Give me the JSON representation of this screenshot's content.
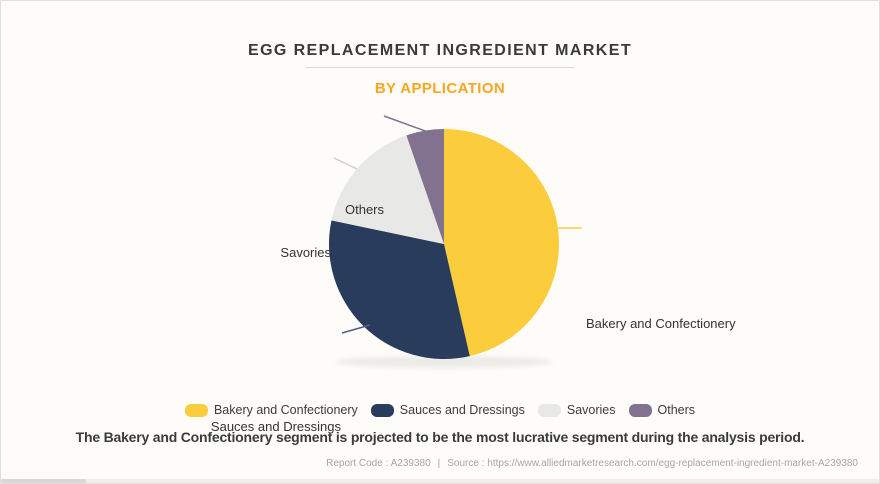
{
  "page": {
    "title": "EGG REPLACEMENT INGREDIENT MARKET",
    "subtitle": "BY APPLICATION",
    "statement": "The Bakery and Confectionery segment is projected to be the most lucrative segment during the analysis period.",
    "footer": {
      "report_code": "Report Code : A239380",
      "separator": "|",
      "source": "Source : https://www.alliedmarketresearch.com/egg-replacement-ingredient-market-A239380"
    }
  },
  "colors": {
    "accent_orange": "#F6A623",
    "title_text": "#3A3A3A",
    "footer_text": "#A6A6A6",
    "background": "#FDFCF9"
  },
  "chart_data": {
    "type": "pie",
    "title": "EGG REPLACEMENT INGREDIENT MARKET",
    "subtitle": "BY APPLICATION",
    "categories": [
      "Bakery and Confectionery",
      "Sauces and Dressings",
      "Savories",
      "Others"
    ],
    "values": [
      46.4,
      31.9,
      16.4,
      5.3
    ],
    "values_note": "percent share, estimated from slice angles (no numeric labels shown)",
    "colors": [
      "#FBCD3C",
      "#2A3C5C",
      "#E8E8E6",
      "#82718F"
    ],
    "start_angle_deg": -90,
    "direction": "clockwise",
    "legend_position": "bottom",
    "labels_outside": true
  }
}
